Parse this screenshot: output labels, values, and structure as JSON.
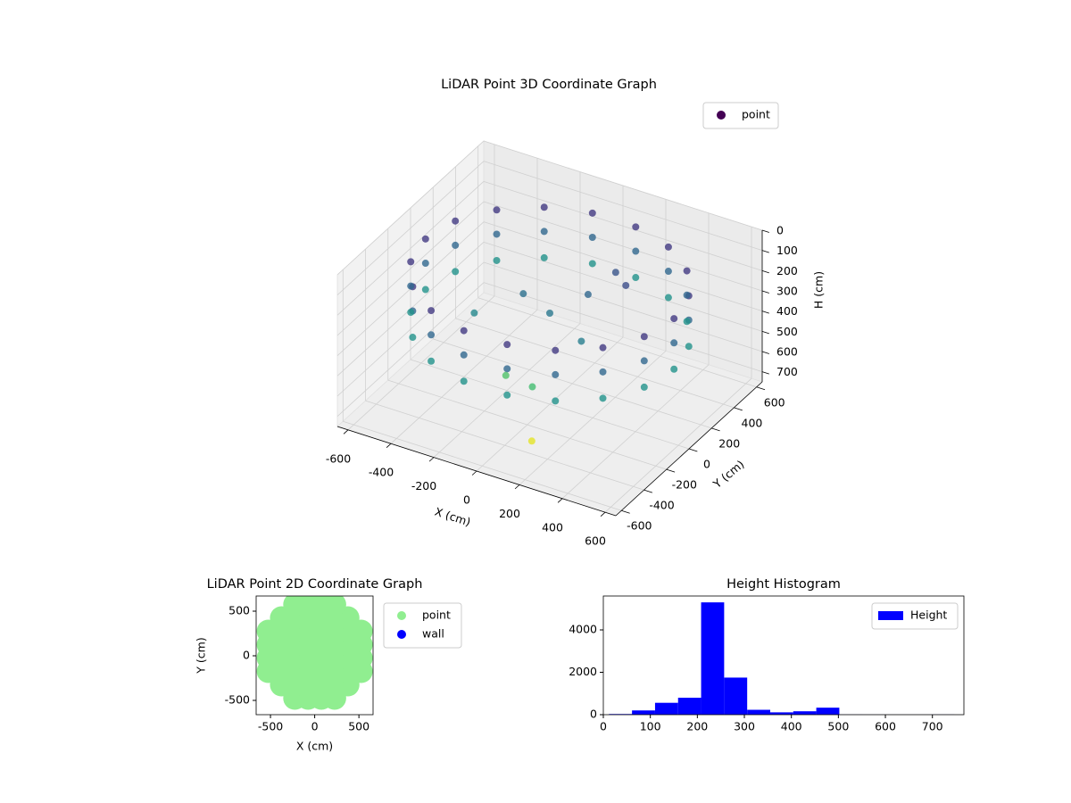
{
  "chart_data": [
    {
      "type": "scatter3d",
      "title": "LiDAR Point 3D Coordinate Graph",
      "x_label": "X (cm)",
      "y_label": "Y (cm)",
      "z_label": "H (cm)",
      "colormap": "viridis",
      "legend": "upper right",
      "grid": true,
      "xlim": [
        -650,
        650
      ],
      "ylim": [
        -650,
        650
      ],
      "zlim": [
        0,
        750
      ],
      "z_inverted": true,
      "xticks": [
        -600,
        -400,
        -200,
        0,
        200,
        400,
        600
      ],
      "yticks": [
        -600,
        -400,
        -200,
        0,
        200,
        400,
        600
      ],
      "zticks": [
        0,
        100,
        200,
        300,
        400,
        500,
        600,
        700
      ],
      "series": [
        {
          "name": "point",
          "x": [
            580,
            545,
            444,
            290,
            101,
            -101,
            -290,
            -444,
            -545,
            -580,
            -545,
            -444,
            -290,
            -101,
            101,
            290,
            444,
            545,
            580,
            545,
            444,
            290,
            101,
            -101,
            -290,
            -444,
            -545,
            -580,
            -545,
            -444,
            -290,
            -101,
            101,
            290,
            444,
            545,
            580,
            545,
            444,
            290,
            101,
            -101,
            -290,
            -444,
            -545,
            -580,
            -545,
            -444,
            -290,
            -101,
            101,
            290,
            444,
            545,
            0,
            100,
            -150,
            200,
            50,
            -100,
            250,
            -300,
            150,
            100
          ],
          "y": [
            0,
            198,
            373,
            502,
            571,
            571,
            502,
            373,
            198,
            0,
            -198,
            -373,
            -502,
            -571,
            -571,
            -502,
            -373,
            -198,
            0,
            198,
            373,
            502,
            571,
            571,
            502,
            373,
            198,
            0,
            -198,
            -373,
            -502,
            -571,
            -571,
            -502,
            -373,
            -198,
            0,
            198,
            373,
            502,
            571,
            571,
            502,
            373,
            198,
            0,
            -198,
            -373,
            -502,
            -571,
            -571,
            -502,
            -373,
            -198,
            0,
            150,
            50,
            -100,
            -250,
            -200,
            200,
            -100,
            300,
            -350
          ],
          "z": [
            130,
            130,
            130,
            130,
            130,
            130,
            130,
            130,
            130,
            130,
            130,
            130,
            130,
            130,
            130,
            130,
            130,
            130,
            250,
            250,
            250,
            250,
            250,
            250,
            250,
            250,
            250,
            250,
            250,
            250,
            250,
            250,
            250,
            250,
            250,
            250,
            380,
            380,
            380,
            380,
            380,
            380,
            380,
            380,
            380,
            380,
            380,
            380,
            380,
            380,
            380,
            380,
            380,
            380,
            300,
            250,
            280,
            320,
            520,
            540,
            180,
            350,
            200,
            720
          ]
        }
      ]
    },
    {
      "type": "scatter",
      "title": "LiDAR Point 2D Coordinate Graph",
      "x_label": "X (cm)",
      "y_label": "Y (cm)",
      "legend": "outside right",
      "xlim": [
        -662,
        660
      ],
      "ylim": [
        -660,
        670
      ],
      "xticks": [
        -500,
        0,
        500
      ],
      "yticks": [
        -500,
        0,
        500
      ],
      "series": [
        {
          "name": "point",
          "color": "#90ee90",
          "x": [
            -225,
            -75,
            75,
            225,
            -375,
            -225,
            -75,
            75,
            225,
            375,
            -525,
            -375,
            -225,
            -75,
            75,
            225,
            375,
            525,
            -525,
            -375,
            -225,
            -75,
            75,
            225,
            375,
            525,
            -525,
            -375,
            -225,
            -75,
            75,
            225,
            375,
            525,
            -525,
            -375,
            -225,
            -75,
            75,
            225,
            375,
            525,
            -375,
            -225,
            -75,
            75,
            225,
            375,
            -225,
            -75,
            75,
            225
          ],
          "y": [
            -475,
            -475,
            -475,
            -475,
            -325,
            -325,
            -325,
            -325,
            -325,
            -325,
            -175,
            -175,
            -175,
            -175,
            -175,
            -175,
            -175,
            -175,
            -25,
            -25,
            -25,
            -25,
            -25,
            -25,
            -25,
            -25,
            125,
            125,
            125,
            125,
            125,
            125,
            125,
            125,
            275,
            275,
            275,
            275,
            275,
            275,
            275,
            275,
            425,
            425,
            425,
            425,
            425,
            425,
            575,
            575,
            575,
            575
          ]
        },
        {
          "name": "wall",
          "color": "#0000ff",
          "x": [],
          "y": []
        }
      ]
    },
    {
      "type": "histogram",
      "title": "Height Histogram",
      "legend": "upper right",
      "bins": [
        12,
        61,
        110,
        159,
        208,
        257,
        306,
        355,
        404,
        453,
        502,
        551,
        600,
        649,
        698,
        747
      ],
      "xlim": [
        0,
        767
      ],
      "ylim": [
        0,
        5600
      ],
      "xticks": [
        0,
        100,
        200,
        300,
        400,
        500,
        600,
        700
      ],
      "yticks": [
        0,
        2000,
        4000
      ],
      "series": [
        {
          "name": "Height",
          "color": "#0000ff",
          "values": [
            30,
            200,
            560,
            800,
            5300,
            1750,
            230,
            110,
            160,
            330,
            5,
            3,
            2,
            2,
            4
          ]
        }
      ]
    }
  ]
}
